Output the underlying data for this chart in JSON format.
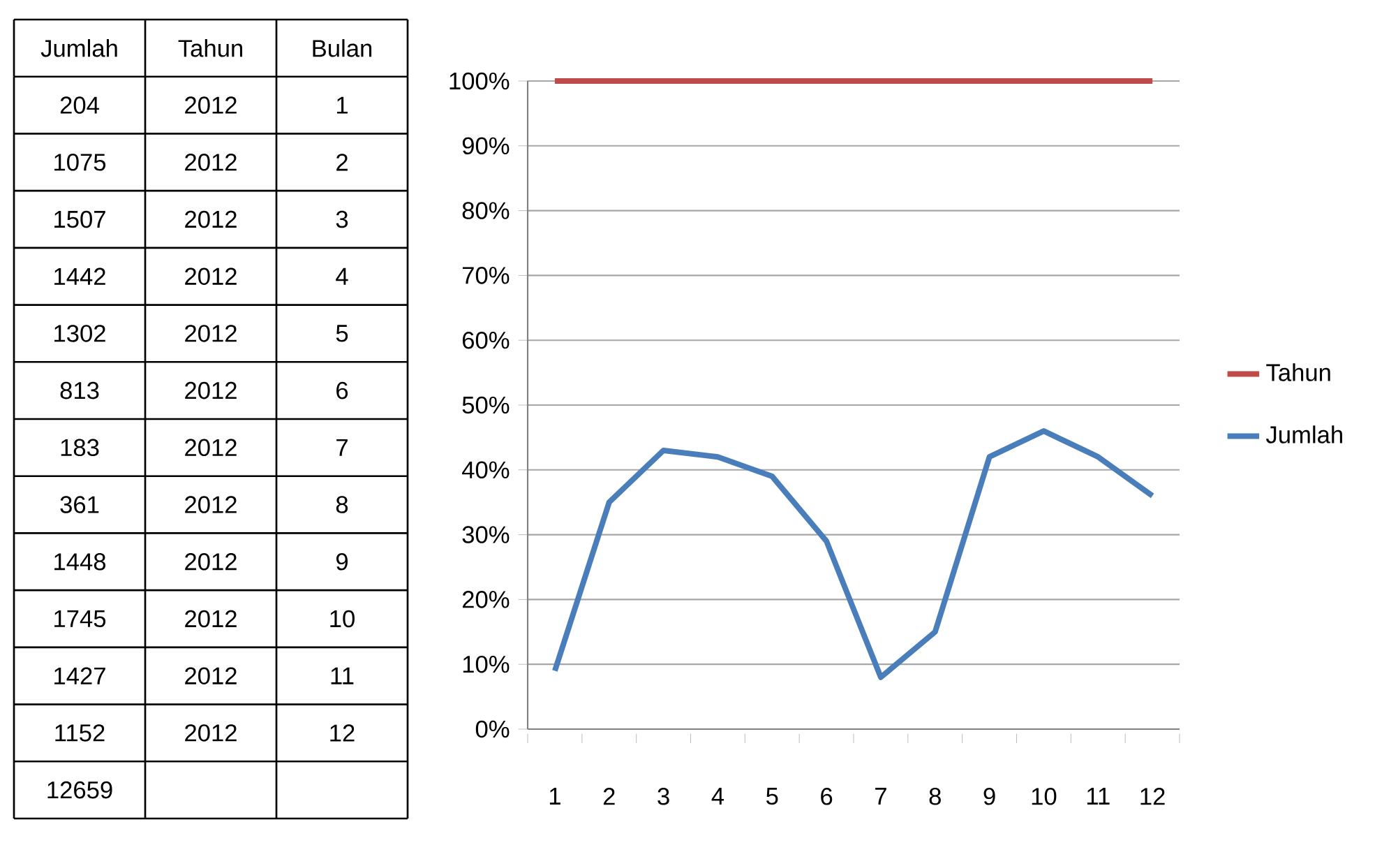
{
  "chart_data": [
    {
      "type": "heatmap",
      "categories": [
        "Jumlah",
        "Tahun",
        "Bulan"
      ],
      "y_categories": [
        null,
        null,
        null,
        null,
        null,
        null,
        null,
        null,
        null,
        null,
        null,
        null,
        null
      ],
      "data_labels": true,
      "cells": [
        [
          204,
          2012,
          1
        ],
        [
          1075,
          2012,
          2
        ],
        [
          1507,
          2012,
          3
        ],
        [
          1442,
          2012,
          4
        ],
        [
          1302,
          2012,
          5
        ],
        [
          813,
          2012,
          6
        ],
        [
          183,
          2012,
          7
        ],
        [
          361,
          2012,
          8
        ],
        [
          1448,
          2012,
          9
        ],
        [
          1745,
          2012,
          10
        ],
        [
          1427,
          2012,
          11
        ],
        [
          1152,
          2012,
          12
        ],
        [
          12659,
          null,
          null
        ]
      ]
    },
    {
      "type": "line",
      "categories": [
        "1",
        "2",
        "3",
        "4",
        "5",
        "6",
        "7",
        "8",
        "9",
        "10",
        "11",
        "12"
      ],
      "series": [
        {
          "name": "Tahun",
          "color": "#be4b48",
          "values": [
            100,
            100,
            100,
            100,
            100,
            100,
            100,
            100,
            100,
            100,
            100,
            100
          ]
        },
        {
          "name": "Jumlah",
          "color": "#4a7ebb",
          "values": [
            9,
            35,
            43,
            42,
            39,
            29,
            8,
            15,
            42,
            46,
            42,
            36
          ]
        }
      ],
      "ylim": [
        0,
        100
      ],
      "yticks": [
        {
          "value": 0,
          "label": "0%"
        },
        {
          "value": 10,
          "label": "10%"
        },
        {
          "value": 20,
          "label": "20%"
        },
        {
          "value": 30,
          "label": "30%"
        },
        {
          "value": 40,
          "label": "40%"
        },
        {
          "value": 50,
          "label": "50%"
        },
        {
          "value": 60,
          "label": "60%"
        },
        {
          "value": 70,
          "label": "70%"
        },
        {
          "value": 80,
          "label": "80%"
        },
        {
          "value": 90,
          "label": "90%"
        },
        {
          "value": 100,
          "label": "100%"
        }
      ],
      "grid": "y",
      "legend": "right",
      "marker": "none",
      "line_style": "solid"
    }
  ]
}
